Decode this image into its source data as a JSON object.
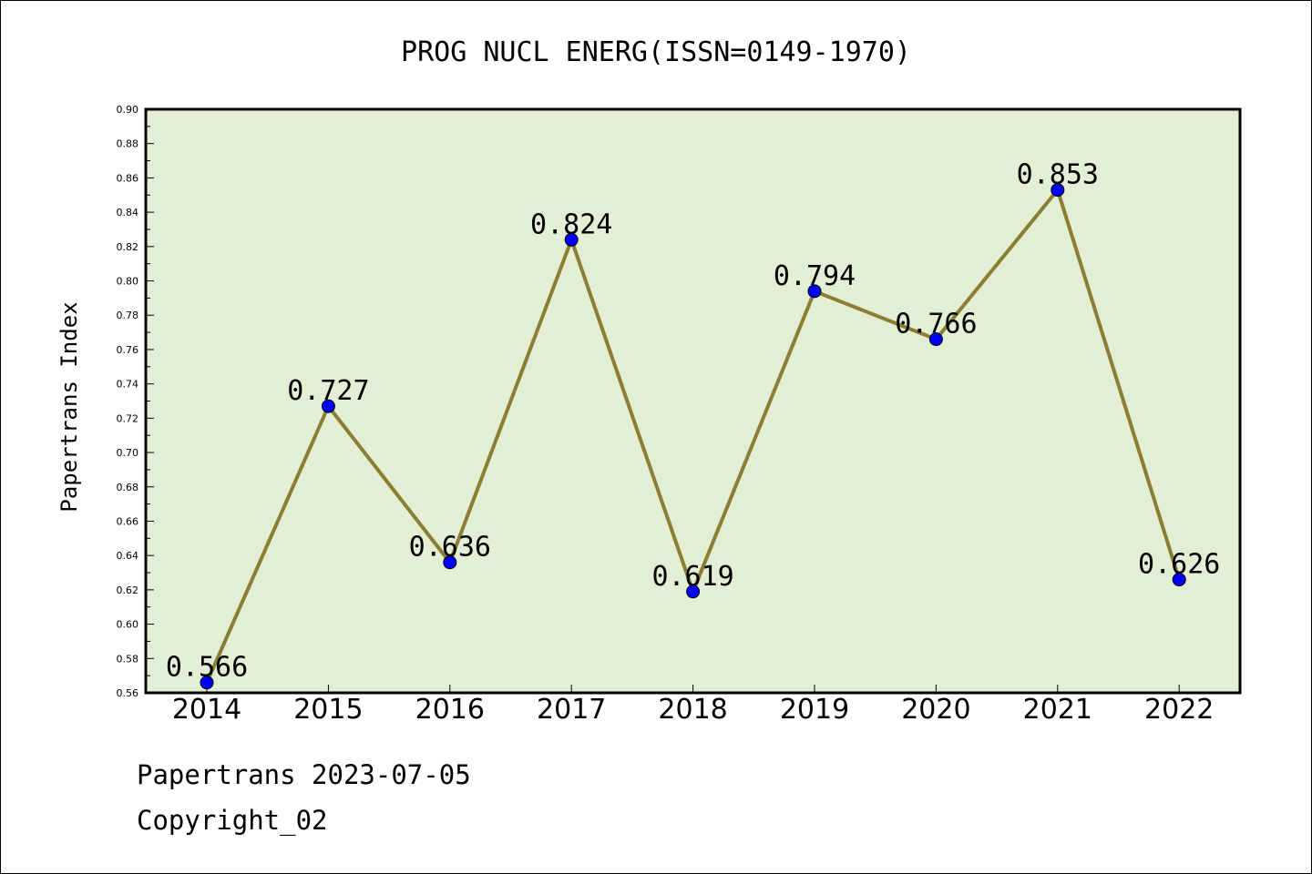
{
  "chart_data": {
    "type": "line",
    "title": "PROG NUCL ENERG(ISSN=0149-1970)",
    "xlabel": "",
    "ylabel": "Papertrans Index",
    "categories": [
      "2014",
      "2015",
      "2016",
      "2017",
      "2018",
      "2019",
      "2020",
      "2021",
      "2022"
    ],
    "values": [
      0.566,
      0.727,
      0.636,
      0.824,
      0.619,
      0.794,
      0.766,
      0.853,
      0.626
    ],
    "data_labels": [
      "0.566",
      "0.727",
      "0.636",
      "0.824",
      "0.619",
      "0.794",
      "0.766",
      "0.853",
      "0.626"
    ],
    "ylim": [
      0.56,
      0.9
    ],
    "yticks": [
      "0.56",
      "0.58",
      "0.60",
      "0.62",
      "0.64",
      "0.66",
      "0.68",
      "0.70",
      "0.72",
      "0.74",
      "0.76",
      "0.78",
      "0.80",
      "0.82",
      "0.84",
      "0.86",
      "0.88",
      "0.90"
    ],
    "grid": false,
    "colors": {
      "plot_background": "#e2efd5",
      "line": "#8b7d32",
      "marker": "#0000ff"
    }
  },
  "footer": {
    "date_line": "Papertrans 2023-07-05",
    "copyright": "Copyright_02"
  }
}
